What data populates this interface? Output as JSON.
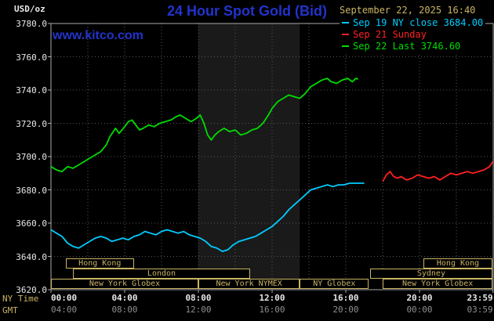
{
  "header": {
    "units": "USD/oz",
    "title": "24 Hour Spot Gold (Bid)",
    "datetime": "September 22, 2025 16:40",
    "watermark": "www.kitco.com"
  },
  "axis_words": {
    "ny": "NY Time",
    "gmt": "GMT"
  },
  "colors": {
    "bg": "#000000",
    "blue": "#2233cc",
    "tan": "#c8b464",
    "axis": "#e8e8e8",
    "gmt": "#8f8f8f",
    "grid": "#575757",
    "border": "#aaaaaa",
    "band": "#1a1a1a",
    "cyan": "#00ccff",
    "red": "#ff2020",
    "green": "#00dd00"
  },
  "chart_data": {
    "type": "line",
    "title": "24 Hour Spot Gold (Bid)",
    "xlabel": "NY Time",
    "ylabel": "USD/oz",
    "xlim": [
      0,
      24
    ],
    "ylim": [
      3620,
      3780
    ],
    "grid": true,
    "x_gridstep_hours": 2,
    "y_gridstep": 20,
    "legend_position": "top-right",
    "nymex_floor_band_hours": [
      8,
      13.5
    ],
    "legend": [
      {
        "label": "Sep 19 NY close 3684.00",
        "color_key": "cyan"
      },
      {
        "label": "Sep 21 Sunday",
        "color_key": "red"
      },
      {
        "label": "Sep 22 Last 3746.60",
        "color_key": "green"
      }
    ],
    "y_ticks": [
      {
        "value": 3780,
        "label": "3780.0"
      },
      {
        "value": 3760,
        "label": "3760.0"
      },
      {
        "value": 3740,
        "label": "3740.0"
      },
      {
        "value": 3720,
        "label": "3720.0"
      },
      {
        "value": 3700,
        "label": "3700.0"
      },
      {
        "value": 3680,
        "label": "3680.0"
      },
      {
        "value": 3660,
        "label": "3660.0"
      },
      {
        "value": 3640,
        "label": "3640.0"
      },
      {
        "value": 3620,
        "label": "3620.0"
      }
    ],
    "x_ticks_ny": [
      {
        "t": 0,
        "label": "00:00",
        "align": "left"
      },
      {
        "t": 4,
        "label": "04:00"
      },
      {
        "t": 8,
        "label": "08:00"
      },
      {
        "t": 12,
        "label": "12:00"
      },
      {
        "t": 16,
        "label": "16:00"
      },
      {
        "t": 20,
        "label": "20:00"
      },
      {
        "t": 23.983,
        "label": "23:59",
        "align": "right"
      }
    ],
    "x_ticks_gmt": [
      {
        "t": 0,
        "label": "04:00",
        "align": "left"
      },
      {
        "t": 4,
        "label": "08:00"
      },
      {
        "t": 8,
        "label": "12:00"
      },
      {
        "t": 12,
        "label": "16:00"
      },
      {
        "t": 16,
        "label": "20:00"
      },
      {
        "t": 20,
        "label": "00:00"
      },
      {
        "t": 23.983,
        "label": "03:59",
        "align": "right"
      }
    ],
    "series": [
      {
        "name": "Sep 19 NY close 3684.00",
        "color_key": "cyan",
        "points": [
          [
            0,
            3656
          ],
          [
            0.3,
            3654
          ],
          [
            0.6,
            3652
          ],
          [
            0.9,
            3648
          ],
          [
            1.2,
            3646
          ],
          [
            1.5,
            3645
          ],
          [
            1.8,
            3647
          ],
          [
            2.1,
            3649
          ],
          [
            2.4,
            3651
          ],
          [
            2.7,
            3652
          ],
          [
            3,
            3651
          ],
          [
            3.3,
            3649
          ],
          [
            3.6,
            3650
          ],
          [
            3.9,
            3651
          ],
          [
            4.2,
            3650
          ],
          [
            4.5,
            3652
          ],
          [
            4.8,
            3653
          ],
          [
            5.1,
            3655
          ],
          [
            5.4,
            3654
          ],
          [
            5.7,
            3653
          ],
          [
            6,
            3655
          ],
          [
            6.3,
            3656
          ],
          [
            6.6,
            3655
          ],
          [
            6.9,
            3654
          ],
          [
            7.2,
            3655
          ],
          [
            7.5,
            3653
          ],
          [
            7.8,
            3652
          ],
          [
            8.1,
            3651
          ],
          [
            8.4,
            3649
          ],
          [
            8.7,
            3646
          ],
          [
            9,
            3645
          ],
          [
            9.3,
            3643
          ],
          [
            9.6,
            3644
          ],
          [
            9.9,
            3647
          ],
          [
            10.2,
            3649
          ],
          [
            10.5,
            3650
          ],
          [
            10.8,
            3651
          ],
          [
            11.1,
            3652
          ],
          [
            11.4,
            3654
          ],
          [
            11.7,
            3656
          ],
          [
            12,
            3658
          ],
          [
            12.3,
            3661
          ],
          [
            12.6,
            3664
          ],
          [
            12.9,
            3668
          ],
          [
            13.2,
            3671
          ],
          [
            13.5,
            3674
          ],
          [
            13.8,
            3677
          ],
          [
            14.1,
            3680
          ],
          [
            14.4,
            3681
          ],
          [
            14.7,
            3682
          ],
          [
            15,
            3683
          ],
          [
            15.3,
            3682
          ],
          [
            15.6,
            3683
          ],
          [
            15.9,
            3683
          ],
          [
            16.2,
            3684
          ],
          [
            16.5,
            3684
          ],
          [
            16.8,
            3684
          ],
          [
            17,
            3684
          ]
        ]
      },
      {
        "name": "Sep 21 Sunday",
        "color_key": "red",
        "points": [
          [
            18,
            3685
          ],
          [
            18.2,
            3689
          ],
          [
            18.4,
            3691
          ],
          [
            18.6,
            3688
          ],
          [
            18.8,
            3687
          ],
          [
            19,
            3688
          ],
          [
            19.3,
            3686
          ],
          [
            19.6,
            3687
          ],
          [
            19.9,
            3689
          ],
          [
            20.2,
            3688
          ],
          [
            20.5,
            3687
          ],
          [
            20.8,
            3688
          ],
          [
            21.1,
            3686
          ],
          [
            21.4,
            3688
          ],
          [
            21.7,
            3690
          ],
          [
            22,
            3689
          ],
          [
            22.3,
            3690
          ],
          [
            22.6,
            3691
          ],
          [
            22.9,
            3690
          ],
          [
            23.2,
            3691
          ],
          [
            23.5,
            3692
          ],
          [
            23.8,
            3694
          ],
          [
            23.98,
            3697
          ]
        ]
      },
      {
        "name": "Sep 22 Last 3746.60",
        "color_key": "green",
        "points": [
          [
            0,
            3694
          ],
          [
            0.3,
            3692
          ],
          [
            0.6,
            3691
          ],
          [
            0.9,
            3694
          ],
          [
            1.2,
            3693
          ],
          [
            1.5,
            3695
          ],
          [
            1.8,
            3697
          ],
          [
            2.1,
            3699
          ],
          [
            2.4,
            3701
          ],
          [
            2.7,
            3703
          ],
          [
            3,
            3707
          ],
          [
            3.2,
            3712
          ],
          [
            3.5,
            3717
          ],
          [
            3.7,
            3714
          ],
          [
            4,
            3718
          ],
          [
            4.2,
            3721
          ],
          [
            4.4,
            3722
          ],
          [
            4.6,
            3719
          ],
          [
            4.8,
            3716
          ],
          [
            5,
            3717
          ],
          [
            5.3,
            3719
          ],
          [
            5.6,
            3718
          ],
          [
            5.9,
            3720
          ],
          [
            6.2,
            3721
          ],
          [
            6.5,
            3722
          ],
          [
            6.8,
            3724
          ],
          [
            7,
            3725
          ],
          [
            7.3,
            3723
          ],
          [
            7.6,
            3721
          ],
          [
            7.9,
            3723
          ],
          [
            8.1,
            3725
          ],
          [
            8.3,
            3720
          ],
          [
            8.5,
            3713
          ],
          [
            8.7,
            3710
          ],
          [
            8.9,
            3713
          ],
          [
            9.1,
            3715
          ],
          [
            9.4,
            3717
          ],
          [
            9.7,
            3715
          ],
          [
            10,
            3716
          ],
          [
            10.3,
            3713
          ],
          [
            10.6,
            3714
          ],
          [
            10.9,
            3716
          ],
          [
            11.2,
            3717
          ],
          [
            11.5,
            3720
          ],
          [
            11.8,
            3725
          ],
          [
            12,
            3729
          ],
          [
            12.3,
            3733
          ],
          [
            12.6,
            3735
          ],
          [
            12.9,
            3737
          ],
          [
            13.2,
            3736
          ],
          [
            13.5,
            3735
          ],
          [
            13.8,
            3738
          ],
          [
            14.1,
            3742
          ],
          [
            14.4,
            3744
          ],
          [
            14.7,
            3746
          ],
          [
            15,
            3747
          ],
          [
            15.2,
            3745
          ],
          [
            15.5,
            3744
          ],
          [
            15.8,
            3746
          ],
          [
            16.1,
            3747
          ],
          [
            16.35,
            3745
          ],
          [
            16.55,
            3747
          ],
          [
            16.67,
            3746.6
          ]
        ]
      }
    ],
    "sessions": [
      {
        "row": 0,
        "start_hour": 0.8,
        "end_hour": 4.5,
        "label": "Hong Kong"
      },
      {
        "row": 0,
        "start_hour": 20.2,
        "end_hour": 23.97,
        "label": "Hong Kong"
      },
      {
        "row": 1,
        "start_hour": 1.2,
        "end_hour": 10.8,
        "label": "London"
      },
      {
        "row": 1,
        "start_hour": 17.3,
        "end_hour": 23.97,
        "label": "Sydney"
      },
      {
        "row": 2,
        "start_hour": 0,
        "end_hour": 8,
        "label": "New York Globex"
      },
      {
        "row": 2,
        "start_hour": 8,
        "end_hour": 13.5,
        "label": "New York NYMEX"
      },
      {
        "row": 2,
        "start_hour": 13.5,
        "end_hour": 17.25,
        "label": "NY Globex"
      },
      {
        "row": 2,
        "start_hour": 18,
        "end_hour": 23.97,
        "label": "New York Globex"
      }
    ]
  }
}
